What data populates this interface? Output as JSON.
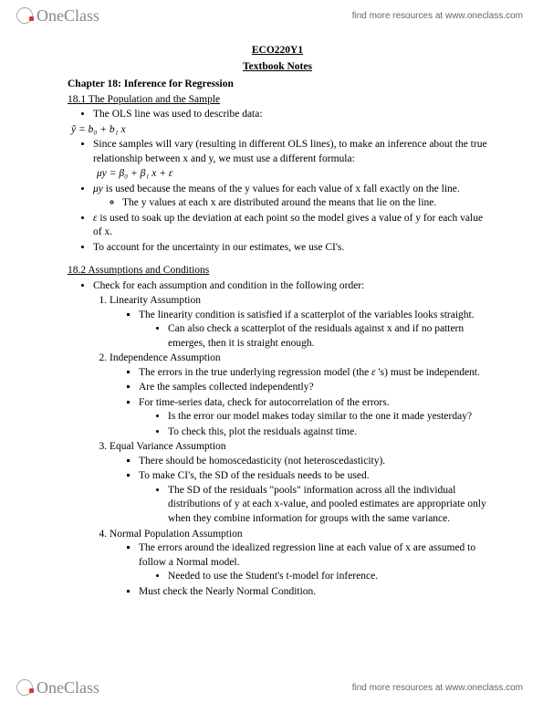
{
  "brand": {
    "name": "OneClass",
    "tagline": "find more resources at www.oneclass.com"
  },
  "doc": {
    "course": "ECO220Y1",
    "subtitle": "Textbook Notes",
    "chapter": "Chapter 18: Inference for Regression",
    "sec1": {
      "title": "18.1 The Population and the Sample",
      "p1": "The OLS line was used to describe data:",
      "f1": "ŷ = b₀ + b₁ x",
      "p2": "Since samples will vary (resulting in different OLS lines), to make an inference about the true relationship between x and y, we must use a different formula:",
      "f2": "μy = β₀ + β₁ x + ε",
      "p3a": "μy",
      "p3b": " is used because the means of the y values for each value of x fall exactly on the line.",
      "p3c": "The y values at each x are distributed around the means that lie on the line.",
      "p4a": "ε",
      "p4b": " is used to soak up the deviation at each point so the model gives a value of y for each value of x.",
      "p5": "To account for the uncertainty in our estimates, we use CI's."
    },
    "sec2": {
      "title": "18.2 Assumptions and Conditions",
      "intro": "Check for each assumption and condition in the following order:",
      "a1": {
        "t": "Linearity Assumption",
        "b1": "The linearity condition is satisfied if a scatterplot of the variables looks straight.",
        "b1a": "Can also check a scatterplot of the residuals against x and if no pattern emerges, then it is straight enough."
      },
      "a2": {
        "t": "Independence Assumption",
        "b1a": "The errors in the true underlying regression model (the ",
        "b1b": "ε",
        "b1c": " 's) must be independent.",
        "b2": "Are the samples collected independently?",
        "b3": "For time-series data, check for autocorrelation of the errors.",
        "b3a": "Is the error our model makes today similar to the one it made yesterday?",
        "b3b": "To check this, plot the residuals against time."
      },
      "a3": {
        "t": "Equal Variance Assumption",
        "b1": "There should be homoscedasticity (not heteroscedasticity).",
        "b2": "To make CI's, the SD of the residuals needs to be used.",
        "b2a": "The SD of the residuals \"pools\" information across all the individual distributions of y at each x-value, and pooled estimates are appropriate only when they combine information for groups with the same variance."
      },
      "a4": {
        "t": "Normal Population Assumption",
        "b1": "The errors around the idealized regression line at each value of x are assumed to follow a Normal model.",
        "b1a": "Needed to use the Student's t-model for inference.",
        "b2": "Must check the Nearly Normal Condition."
      }
    }
  }
}
